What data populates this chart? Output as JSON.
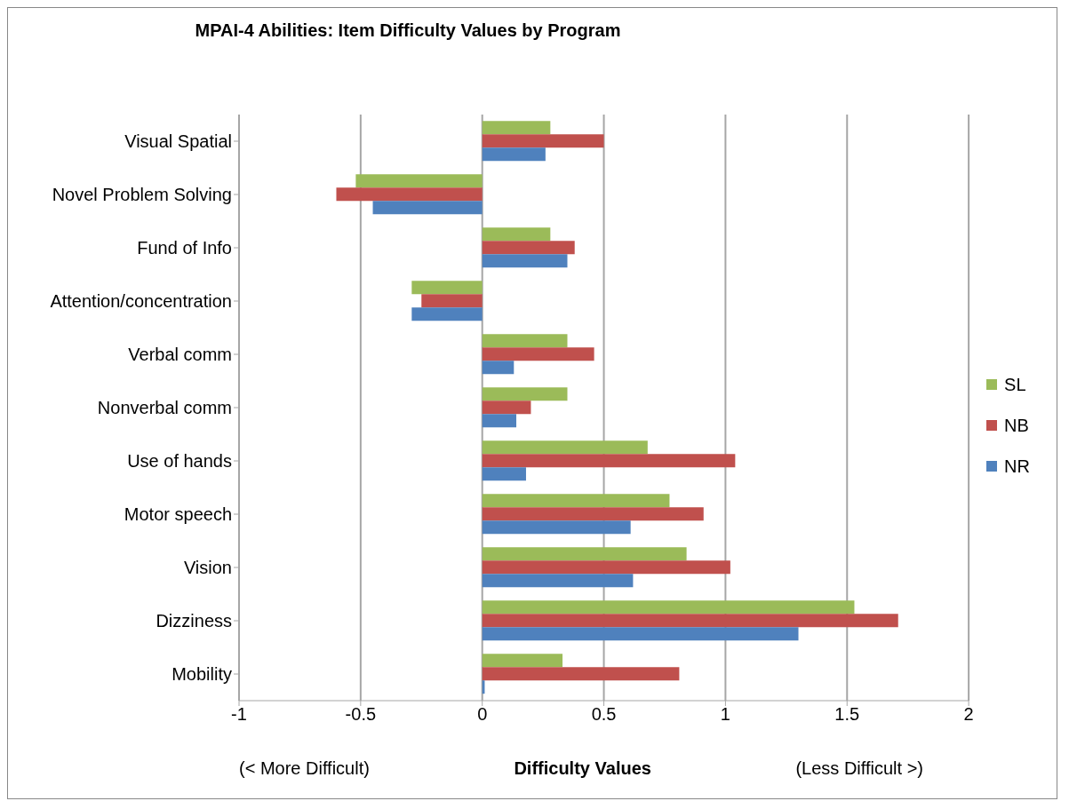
{
  "chart_data": {
    "type": "bar",
    "orientation": "horizontal",
    "title": "MPAI-4 Abilities: Item Difficulty Values by Program",
    "xlabel": "Difficulty Values",
    "annotations": [
      "(< More Difficult)",
      "(Less Difficult >)"
    ],
    "categories": [
      "Visual Spatial",
      "Novel Problem Solving",
      "Fund of Info",
      "Attention/concentration",
      "Verbal comm",
      "Nonverbal comm",
      "Use of hands",
      "Motor speech",
      "Vision",
      "Dizziness",
      "Mobility"
    ],
    "series": [
      {
        "name": "SL",
        "color": "#9bbb59",
        "values": [
          0.28,
          -0.52,
          0.28,
          -0.29,
          0.35,
          0.35,
          0.68,
          0.77,
          0.84,
          1.53,
          0.33
        ]
      },
      {
        "name": "NB",
        "color": "#c0504d",
        "values": [
          0.5,
          -0.6,
          0.38,
          -0.25,
          0.46,
          0.2,
          1.04,
          0.91,
          1.02,
          1.71,
          0.81
        ]
      },
      {
        "name": "NR",
        "color": "#4f81bd",
        "values": [
          0.26,
          -0.45,
          0.35,
          -0.29,
          0.13,
          0.14,
          0.18,
          0.61,
          0.62,
          1.3,
          0.01
        ]
      }
    ],
    "xlim": [
      -1,
      2
    ],
    "xticks": [
      -1,
      -0.5,
      0,
      0.5,
      1,
      1.5,
      2
    ],
    "grid": "x",
    "legend": "right"
  }
}
